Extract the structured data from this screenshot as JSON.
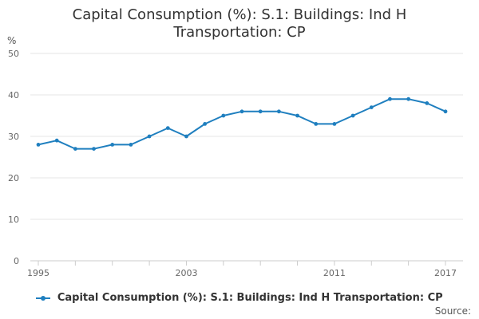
{
  "chart_data": {
    "type": "line",
    "title": "Capital Consumption (%): S.1: Buildings: Ind H Transportation: CP",
    "title_lines": [
      "Capital Consumption (%): S.1: Buildings: Ind H",
      "Transportation: CP"
    ],
    "ylabel": "%",
    "xlabel": "",
    "ylim": [
      0,
      50
    ],
    "yticks": [
      0,
      10,
      20,
      30,
      40,
      50
    ],
    "x": [
      1995,
      1996,
      1997,
      1998,
      1999,
      2000,
      2001,
      2002,
      2003,
      2004,
      2005,
      2006,
      2007,
      2008,
      2009,
      2010,
      2011,
      2012,
      2013,
      2014,
      2015,
      2016,
      2017
    ],
    "xtick_labels": [
      "1995",
      "2003",
      "2011",
      "2017"
    ],
    "series": [
      {
        "name": "Capital Consumption (%): S.1: Buildings: Ind H Transportation: CP",
        "values": [
          28,
          29,
          27,
          27,
          28,
          28,
          30,
          32,
          30,
          33,
          35,
          36,
          36,
          36,
          35,
          33,
          33,
          35,
          37,
          39,
          39,
          38,
          36
        ]
      }
    ],
    "grid": true,
    "legend_position": "bottom",
    "source_label": "Source:"
  },
  "colors": {
    "series": "#1f7fbf",
    "grid": "#e6e6e6",
    "axis": "#cccccc"
  }
}
